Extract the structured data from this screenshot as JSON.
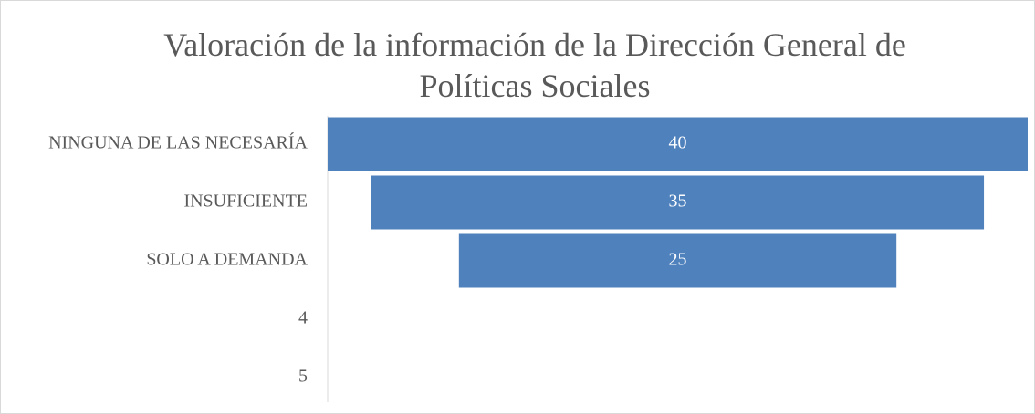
{
  "chart_data": {
    "type": "funnel",
    "title": "Valoración  de la información de la Dirección General de Políticas Sociales",
    "categories": [
      "NINGUNA  DE LAS NECESARÍA",
      "INSUFICIENTE",
      "SOLO A DEMANDA",
      "4",
      "5"
    ],
    "values": [
      40,
      35,
      25,
      null,
      null
    ],
    "color": "#4f81bd"
  }
}
